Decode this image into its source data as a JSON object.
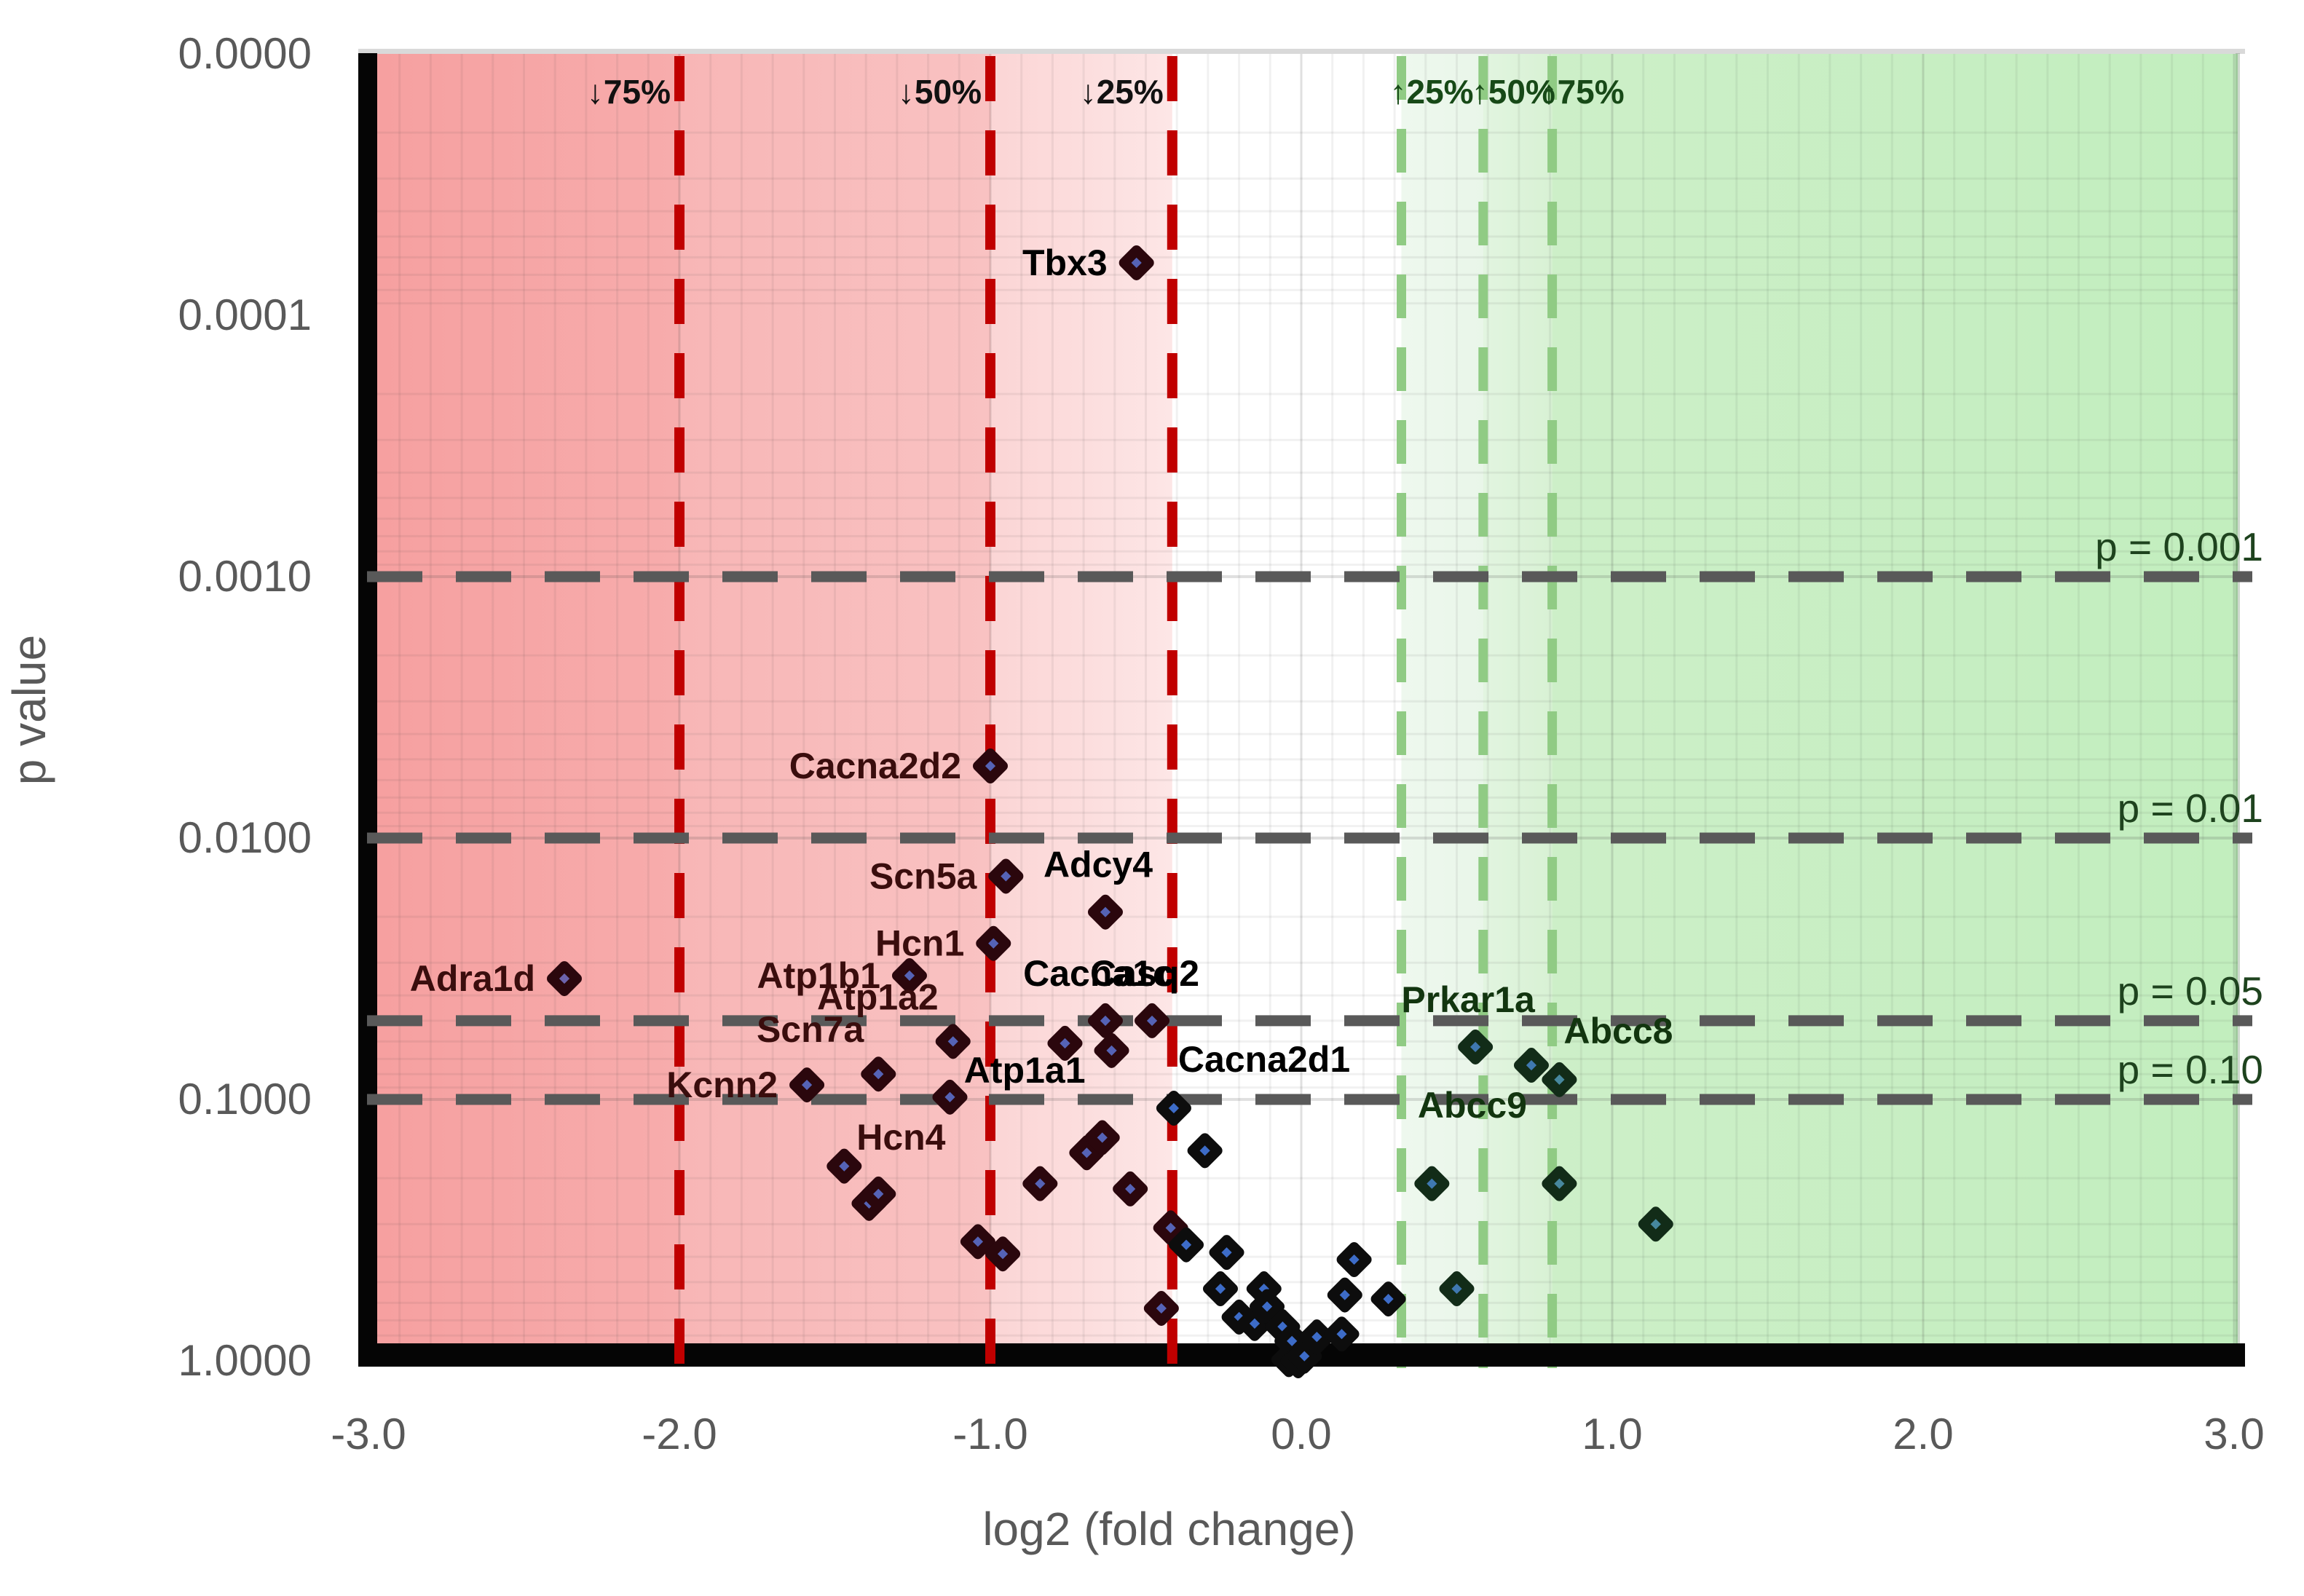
{
  "chart_data": {
    "type": "scatter",
    "title": "",
    "xlabel": "log2 (fold change)",
    "ylabel": "p value",
    "x_axis": {
      "min": -3.0,
      "max": 3.0,
      "tick_labels": [
        "-3.0",
        "-2.0",
        "-1.0",
        "0.0",
        "1.0",
        "2.0",
        "3.0"
      ],
      "tick_values": [
        -3,
        -2,
        -1,
        0,
        1,
        2,
        3
      ],
      "minor_step": 0.1
    },
    "y_axis": {
      "scale": "log10-inverted",
      "top_p": 1e-05,
      "bottom_p": 1.0,
      "ticks": [
        {
          "label": "0.0000",
          "p": 1e-05
        },
        {
          "label": "0.0001",
          "p": 0.0001
        },
        {
          "label": "0.0010",
          "p": 0.001
        },
        {
          "label": "0.0100",
          "p": 0.01
        },
        {
          "label": "0.1000",
          "p": 0.1
        },
        {
          "label": "1.0000",
          "p": 1.0
        }
      ]
    },
    "grid": {
      "on": true,
      "x_minor_step": 0.1,
      "y_minor_per_decade": [
        2,
        3,
        4,
        5,
        6,
        7,
        8,
        9
      ]
    },
    "fold_thresholds_down": [
      {
        "label": "↓75%",
        "x": -2.0
      },
      {
        "label": "↓50%",
        "x": -1.0
      },
      {
        "label": "↓25%",
        "x": -0.415
      }
    ],
    "fold_thresholds_up": [
      {
        "label": "↑25%",
        "x": 0.322
      },
      {
        "label": "↑50%",
        "x": 0.585
      },
      {
        "label": "↑75%",
        "x": 0.807
      }
    ],
    "p_threshold_lines": [
      {
        "label": "p = 0.001",
        "p": 0.001
      },
      {
        "label": "p = 0.01",
        "p": 0.01
      },
      {
        "label": "p = 0.05",
        "p": 0.05
      },
      {
        "label": "p = 0.10",
        "p": 0.1
      }
    ],
    "points": [
      {
        "gene": "Tbx3",
        "x": -0.53,
        "p": 6.3e-05,
        "label_pos": "left"
      },
      {
        "gene": "Cacna2d2",
        "x": -1.0,
        "p": 0.0053,
        "label_pos": "left"
      },
      {
        "gene": "Scn5a",
        "x": -0.95,
        "p": 0.014,
        "label_pos": "left"
      },
      {
        "gene": "Adcy4",
        "x": -0.63,
        "p": 0.0192,
        "label_pos": "above"
      },
      {
        "gene": "Hcn1",
        "x": -0.99,
        "p": 0.0253,
        "label_pos": "left"
      },
      {
        "gene": "Atp1b1",
        "x": -1.26,
        "p": 0.0336,
        "label_pos": "left"
      },
      {
        "gene": "Adra1d",
        "x": -2.37,
        "p": 0.0345,
        "label_pos": "left"
      },
      {
        "gene": "Cacna1c",
        "x": -0.63,
        "p": 0.05,
        "label_pos": "above"
      },
      {
        "gene": "Casq2",
        "x": -0.48,
        "p": 0.05,
        "label_pos": "above"
      },
      {
        "gene": "Atp1a2",
        "x": -1.12,
        "p": 0.06,
        "label_pos": "above-left"
      },
      {
        "gene": "Prkar1a",
        "x": 0.56,
        "p": 0.063,
        "label_pos": "above"
      },
      {
        "gene": "",
        "x": -0.76,
        "p": 0.061,
        "label_pos": ""
      },
      {
        "gene": "Atp1a1",
        "x": -0.61,
        "p": 0.065,
        "label_pos": "left-down"
      },
      {
        "gene": "Abcc9",
        "x": 0.74,
        "p": 0.074,
        "label_pos": "below-left"
      },
      {
        "gene": "Scn7a",
        "x": -1.36,
        "p": 0.08,
        "label_pos": "above-left"
      },
      {
        "gene": "Abcc8",
        "x": 0.83,
        "p": 0.084,
        "label_pos": "above-right"
      },
      {
        "gene": "Kcnn2",
        "x": -1.59,
        "p": 0.088,
        "label_pos": "left"
      },
      {
        "gene": "Hcn4",
        "x": -1.13,
        "p": 0.098,
        "label_pos": "below-left"
      },
      {
        "gene": "Cacna2d1",
        "x": -0.41,
        "p": 0.108,
        "label_pos": "above-right"
      },
      {
        "gene": "",
        "x": -1.47,
        "p": 0.18,
        "label_pos": ""
      },
      {
        "gene": "",
        "x": -1.39,
        "p": 0.25,
        "label_pos": ""
      },
      {
        "gene": "",
        "x": -1.36,
        "p": 0.23,
        "label_pos": ""
      },
      {
        "gene": "",
        "x": -1.04,
        "p": 0.35,
        "label_pos": ""
      },
      {
        "gene": "",
        "x": -0.96,
        "p": 0.39,
        "label_pos": ""
      },
      {
        "gene": "",
        "x": -0.84,
        "p": 0.21,
        "label_pos": ""
      },
      {
        "gene": "",
        "x": -0.69,
        "p": 0.16,
        "label_pos": ""
      },
      {
        "gene": "",
        "x": -0.64,
        "p": 0.14,
        "label_pos": ""
      },
      {
        "gene": "",
        "x": -0.55,
        "p": 0.22,
        "label_pos": ""
      },
      {
        "gene": "",
        "x": -0.45,
        "p": 0.63,
        "label_pos": ""
      },
      {
        "gene": "",
        "x": -0.42,
        "p": 0.31,
        "label_pos": ""
      },
      {
        "gene": "",
        "x": -0.37,
        "p": 0.36,
        "label_pos": ""
      },
      {
        "gene": "",
        "x": -0.31,
        "p": 0.157,
        "label_pos": ""
      },
      {
        "gene": "",
        "x": -0.26,
        "p": 0.53,
        "label_pos": ""
      },
      {
        "gene": "",
        "x": -0.24,
        "p": 0.385,
        "label_pos": ""
      },
      {
        "gene": "",
        "x": -0.2,
        "p": 0.68,
        "label_pos": ""
      },
      {
        "gene": "",
        "x": -0.15,
        "p": 0.72,
        "label_pos": ""
      },
      {
        "gene": "",
        "x": -0.12,
        "p": 0.53,
        "label_pos": ""
      },
      {
        "gene": "",
        "x": -0.11,
        "p": 0.62,
        "label_pos": ""
      },
      {
        "gene": "",
        "x": -0.06,
        "p": 0.74,
        "label_pos": ""
      },
      {
        "gene": "",
        "x": -0.04,
        "p": 0.99,
        "label_pos": ""
      },
      {
        "gene": "",
        "x": -0.03,
        "p": 0.84,
        "label_pos": ""
      },
      {
        "gene": "",
        "x": -0.01,
        "p": 1.0,
        "label_pos": ""
      },
      {
        "gene": "",
        "x": 0.01,
        "p": 0.96,
        "label_pos": ""
      },
      {
        "gene": "",
        "x": 0.05,
        "p": 0.81,
        "label_pos": ""
      },
      {
        "gene": "",
        "x": 0.13,
        "p": 0.79,
        "label_pos": ""
      },
      {
        "gene": "",
        "x": 0.14,
        "p": 0.56,
        "label_pos": ""
      },
      {
        "gene": "",
        "x": 0.17,
        "p": 0.41,
        "label_pos": ""
      },
      {
        "gene": "",
        "x": 0.28,
        "p": 0.58,
        "label_pos": ""
      },
      {
        "gene": "",
        "x": 0.42,
        "p": 0.21,
        "label_pos": ""
      },
      {
        "gene": "",
        "x": 0.5,
        "p": 0.53,
        "label_pos": ""
      },
      {
        "gene": "",
        "x": 0.83,
        "p": 0.21,
        "label_pos": ""
      },
      {
        "gene": "",
        "x": 1.14,
        "p": 0.3,
        "label_pos": ""
      }
    ],
    "colors": {
      "axis_black": "#050505",
      "tick_text": "#595959",
      "title_text": "#595959",
      "red_dash": "#c00000",
      "green_dash": "#90cb84",
      "gray_dash": "#595959",
      "p_label_text": "#1e431e",
      "down_label_text": "#111111",
      "up_label_text": "#174917",
      "top_border": "#d9d9d9",
      "bg_stops": {
        "far_left": "#f6a0a0",
        "band2_l": "#f7acac",
        "band2_r": "#f8b6b6",
        "band3_l": "#f9c2c2",
        "band3_r": "#fbd5d5",
        "band4_l": "#fde6e6",
        "white": "#ffffff",
        "gband1_l": "#eef8ee",
        "gband1_r": "#e9f6e9",
        "gband2_l": "#e2f5e0",
        "gband2_r": "#d8f1d4",
        "gband3_l": "#cdefc8",
        "far_right": "#c2eebe"
      },
      "outline_red_zone": "#2b070d",
      "outline_mid_zone": "#0d0d0d",
      "outline_green_zone": "#122c18",
      "fill_far_red": "#6c63ac",
      "fill_red": "#5563b6",
      "fill_mid": "#3d6cc8",
      "fill_green": "#3f78b0",
      "fill_far_green": "#47889e",
      "label_red_zone": "#3a0d0d",
      "label_mid_zone": "#000000",
      "label_green_zone": "#12350f"
    }
  }
}
